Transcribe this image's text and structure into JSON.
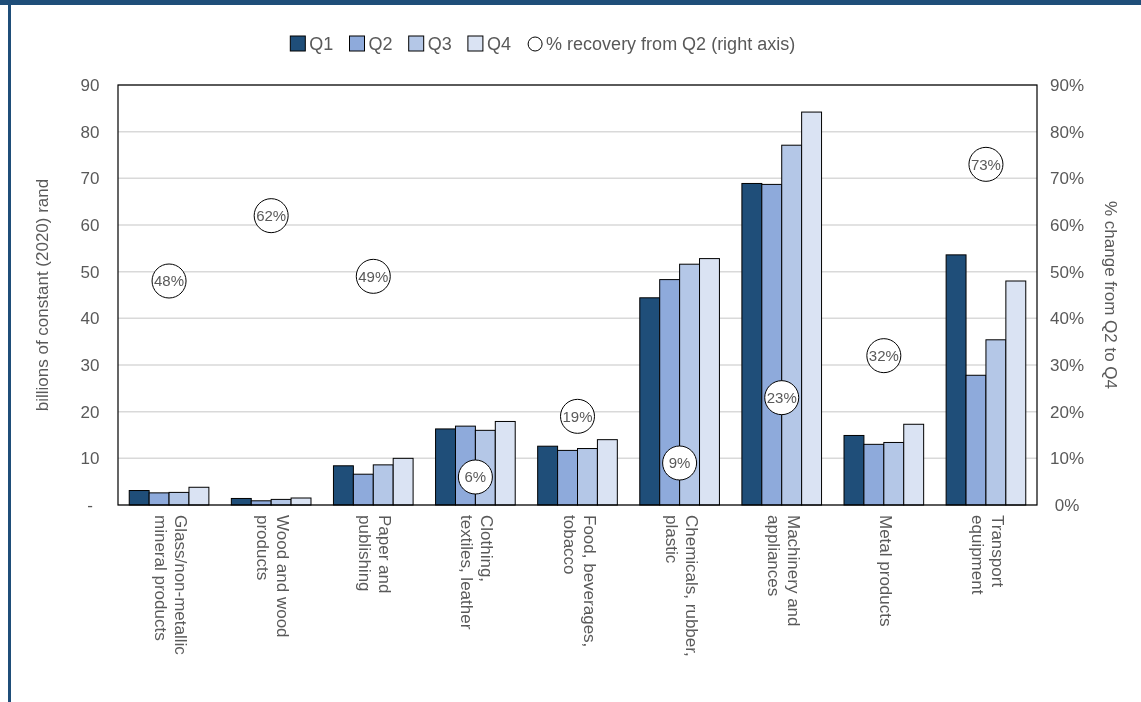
{
  "chart_data": {
    "type": "bar",
    "categories": [
      "Glass/non-metallic mineral products",
      "Wood and wood products",
      "Paper and publishing",
      "Clothing, textiles, leather",
      "Food, beverages, tobacco",
      "Chemicals, rubber, plastic",
      "Machinery and appliances",
      "Metal products",
      "Transport equipment"
    ],
    "series": [
      {
        "name": "Q1",
        "color": "#1f4e79",
        "values": [
          3.1,
          1.4,
          8.4,
          16.3,
          12.6,
          44.4,
          68.9,
          14.9,
          53.6
        ]
      },
      {
        "name": "Q2",
        "color": "#8eaadb",
        "values": [
          2.6,
          0.9,
          6.6,
          16.9,
          11.7,
          48.3,
          68.7,
          13.0,
          27.8
        ]
      },
      {
        "name": "Q3",
        "color": "#b4c7e7",
        "values": [
          2.7,
          1.2,
          8.6,
          16.0,
          12.1,
          51.6,
          77.1,
          13.4,
          35.4
        ]
      },
      {
        "name": "Q4",
        "color": "#dae3f3",
        "values": [
          3.8,
          1.5,
          10.0,
          17.9,
          14.0,
          52.8,
          84.2,
          17.3,
          48.0
        ]
      },
      {
        "name": "% recovery from Q2 (right axis)",
        "type": "scatter",
        "axis": "y2",
        "color": "#ffffff",
        "marker": "circle",
        "values": [
          48,
          62,
          49,
          6,
          19,
          9,
          23,
          32,
          73
        ],
        "value_labels": [
          "48%",
          "62%",
          "49%",
          "6%",
          "19%",
          "9%",
          "23%",
          "32%",
          "73%"
        ]
      }
    ],
    "ylabel": "billions of constant (2020) rand",
    "y2label": "% change from Q2 to Q4",
    "ylim": [
      0,
      90
    ],
    "yticks": [
      {
        "value": 0,
        "label": "-"
      },
      10,
      20,
      30,
      40,
      50,
      60,
      70,
      80,
      90
    ],
    "y2lim": [
      0,
      90
    ],
    "y2ticks": [
      {
        "value": 0,
        "label": "0%"
      },
      {
        "value": 10,
        "label": "10%"
      },
      {
        "value": 20,
        "label": "20%"
      },
      {
        "value": 30,
        "label": "30%"
      },
      {
        "value": 40,
        "label": "40%"
      },
      {
        "value": 50,
        "label": "50%"
      },
      {
        "value": 60,
        "label": "60%"
      },
      {
        "value": 70,
        "label": "70%"
      },
      {
        "value": 80,
        "label": "80%"
      },
      {
        "value": 90,
        "label": "90%"
      }
    ],
    "grid": "y",
    "legend": "top"
  }
}
